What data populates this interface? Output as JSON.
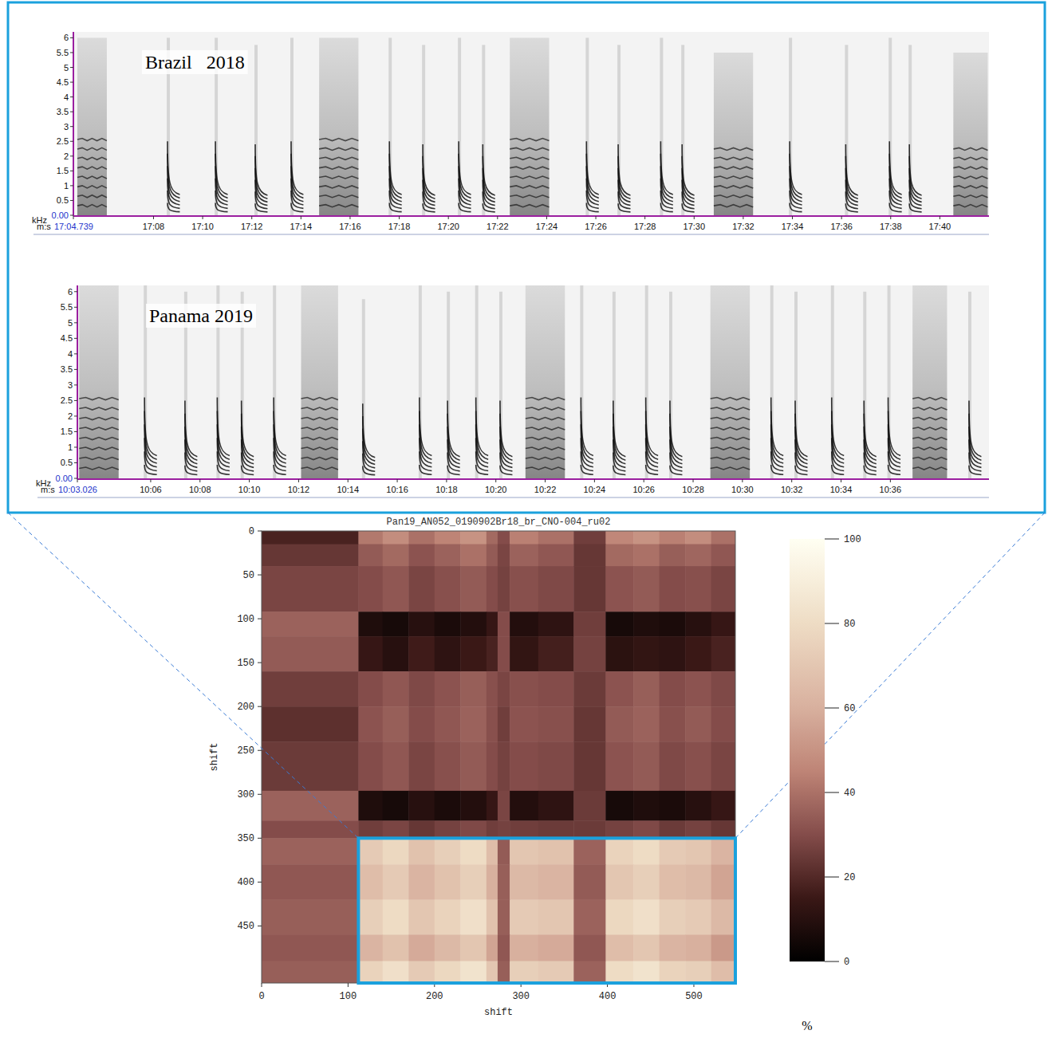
{
  "chart_data": [
    {
      "type": "spectrogram",
      "title": "Brazil   2018",
      "x_label": "m:s",
      "y_label": "kHz",
      "xlim": [
        1024.739,
        1062.0
      ],
      "ylim": [
        0,
        6.2
      ],
      "xticks": [
        {
          "value": 1024.739,
          "label": "17:04.739"
        },
        {
          "value": 1028,
          "label": "17:08"
        },
        {
          "value": 1030,
          "label": "17:10"
        },
        {
          "value": 1032,
          "label": "17:12"
        },
        {
          "value": 1034,
          "label": "17:14"
        },
        {
          "value": 1036,
          "label": "17:16"
        },
        {
          "value": 1038,
          "label": "17:18"
        },
        {
          "value": 1040,
          "label": "17:20"
        },
        {
          "value": 1042,
          "label": "17:22"
        },
        {
          "value": 1044,
          "label": "17:24"
        },
        {
          "value": 1046,
          "label": "17:26"
        },
        {
          "value": 1048,
          "label": "17:28"
        },
        {
          "value": 1050,
          "label": "17:30"
        },
        {
          "value": 1052,
          "label": "17:32"
        },
        {
          "value": 1054,
          "label": "17:34"
        },
        {
          "value": 1056,
          "label": "17:36"
        },
        {
          "value": 1058,
          "label": "17:38"
        },
        {
          "value": 1060,
          "label": "17:40"
        }
      ],
      "yticks": [
        {
          "value": 0,
          "label": "0.00"
        },
        0.5,
        1,
        1.5,
        2,
        2.5,
        3,
        3.5,
        4,
        4.5,
        5,
        5.5,
        6
      ],
      "calls": [
        {
          "type": "burst",
          "t": 1024.9,
          "dur": 1.2,
          "fmax": 6
        },
        {
          "type": "sweep",
          "t": 1028.57,
          "dur": 0.5,
          "fmax": 2.5
        },
        {
          "type": "sweep",
          "t": 1030.52,
          "dur": 0.5,
          "fmax": 2.5
        },
        {
          "type": "sweep",
          "t": 1032.14,
          "dur": 0.5,
          "fmax": 2.4
        },
        {
          "type": "sweep",
          "t": 1033.6,
          "dur": 0.5,
          "fmax": 2.5
        },
        {
          "type": "burst",
          "t": 1034.74,
          "dur": 1.6,
          "fmax": 6
        },
        {
          "type": "sweep",
          "t": 1037.6,
          "dur": 0.5,
          "fmax": 2.5
        },
        {
          "type": "sweep",
          "t": 1038.96,
          "dur": 0.5,
          "fmax": 2.4
        },
        {
          "type": "sweep",
          "t": 1040.42,
          "dur": 0.5,
          "fmax": 2.5
        },
        {
          "type": "sweep",
          "t": 1041.4,
          "dur": 0.5,
          "fmax": 2.4
        },
        {
          "type": "burst",
          "t": 1042.5,
          "dur": 1.6,
          "fmax": 6
        },
        {
          "type": "sweep",
          "t": 1045.62,
          "dur": 0.5,
          "fmax": 2.5
        },
        {
          "type": "sweep",
          "t": 1046.91,
          "dur": 0.5,
          "fmax": 2.4
        },
        {
          "type": "sweep",
          "t": 1048.64,
          "dur": 0.5,
          "fmax": 2.5
        },
        {
          "type": "sweep",
          "t": 1049.51,
          "dur": 0.5,
          "fmax": 2.4
        },
        {
          "type": "burst",
          "t": 1050.8,
          "dur": 1.6,
          "fmax": 5.5
        },
        {
          "type": "sweep",
          "t": 1053.89,
          "dur": 0.5,
          "fmax": 2.5
        },
        {
          "type": "sweep",
          "t": 1056.17,
          "dur": 0.5,
          "fmax": 2.4
        },
        {
          "type": "sweep",
          "t": 1057.95,
          "dur": 0.5,
          "fmax": 2.5
        },
        {
          "type": "sweep",
          "t": 1058.76,
          "dur": 0.5,
          "fmax": 2.4
        },
        {
          "type": "burst",
          "t": 1060.55,
          "dur": 1.4,
          "fmax": 5.5
        }
      ]
    },
    {
      "type": "spectrogram",
      "title": "Panama 2019",
      "x_label": "m:s",
      "y_label": "kHz",
      "xlim": [
        603.026,
        640.0
      ],
      "ylim": [
        0,
        6.2
      ],
      "xticks": [
        {
          "value": 603.026,
          "label": "10:03.026"
        },
        {
          "value": 606,
          "label": "10:06"
        },
        {
          "value": 608,
          "label": "10:08"
        },
        {
          "value": 610,
          "label": "10:10"
        },
        {
          "value": 612,
          "label": "10:12"
        },
        {
          "value": 614,
          "label": "10:14"
        },
        {
          "value": 616,
          "label": "10:16"
        },
        {
          "value": 618,
          "label": "10:18"
        },
        {
          "value": 620,
          "label": "10:20"
        },
        {
          "value": 622,
          "label": "10:22"
        },
        {
          "value": 624,
          "label": "10:24"
        },
        {
          "value": 626,
          "label": "10:26"
        },
        {
          "value": 628,
          "label": "10:28"
        },
        {
          "value": 630,
          "label": "10:30"
        },
        {
          "value": 632,
          "label": "10:32"
        },
        {
          "value": 634,
          "label": "10:34"
        },
        {
          "value": 636,
          "label": "10:36"
        }
      ],
      "yticks": [
        {
          "value": 0,
          "label": "0.00"
        },
        0.5,
        1,
        1.5,
        2,
        2.5,
        3,
        3.5,
        4,
        4.5,
        5,
        5.5,
        6
      ],
      "calls": [
        {
          "type": "burst",
          "t": 603.1,
          "dur": 1.6,
          "fmax": 6.2
        },
        {
          "type": "sweep",
          "t": 605.75,
          "dur": 0.5,
          "fmax": 2.6
        },
        {
          "type": "sweep",
          "t": 607.39,
          "dur": 0.5,
          "fmax": 2.5
        },
        {
          "type": "sweep",
          "t": 608.7,
          "dur": 0.5,
          "fmax": 2.6
        },
        {
          "type": "sweep",
          "t": 609.68,
          "dur": 0.5,
          "fmax": 2.5
        },
        {
          "type": "sweep",
          "t": 610.99,
          "dur": 0.5,
          "fmax": 2.6
        },
        {
          "type": "burst",
          "t": 612.1,
          "dur": 1.5,
          "fmax": 6.2
        },
        {
          "type": "sweep",
          "t": 614.6,
          "dur": 0.5,
          "fmax": 2.4
        },
        {
          "type": "sweep",
          "t": 616.9,
          "dur": 0.5,
          "fmax": 2.6
        },
        {
          "type": "sweep",
          "t": 618.04,
          "dur": 0.5,
          "fmax": 2.5
        },
        {
          "type": "sweep",
          "t": 619.19,
          "dur": 0.5,
          "fmax": 2.6
        },
        {
          "type": "sweep",
          "t": 620.17,
          "dur": 0.5,
          "fmax": 2.5
        },
        {
          "type": "burst",
          "t": 621.2,
          "dur": 1.6,
          "fmax": 6.2
        },
        {
          "type": "sweep",
          "t": 623.45,
          "dur": 0.5,
          "fmax": 2.6
        },
        {
          "type": "sweep",
          "t": 624.76,
          "dur": 0.5,
          "fmax": 2.5
        },
        {
          "type": "sweep",
          "t": 626.08,
          "dur": 0.5,
          "fmax": 2.6
        },
        {
          "type": "sweep",
          "t": 627.06,
          "dur": 0.5,
          "fmax": 2.5
        },
        {
          "type": "burst",
          "t": 628.7,
          "dur": 1.6,
          "fmax": 6.2
        },
        {
          "type": "sweep",
          "t": 631.16,
          "dur": 0.5,
          "fmax": 2.6
        },
        {
          "type": "sweep",
          "t": 632.14,
          "dur": 0.5,
          "fmax": 2.5
        },
        {
          "type": "sweep",
          "t": 633.62,
          "dur": 0.5,
          "fmax": 2.6
        },
        {
          "type": "sweep",
          "t": 634.93,
          "dur": 0.5,
          "fmax": 2.5
        },
        {
          "type": "sweep",
          "t": 635.91,
          "dur": 0.5,
          "fmax": 2.6
        },
        {
          "type": "burst",
          "t": 636.9,
          "dur": 1.4,
          "fmax": 6.2
        },
        {
          "type": "sweep",
          "t": 639.19,
          "dur": 0.5,
          "fmax": 2.5
        }
      ]
    },
    {
      "type": "heatmap",
      "title": "Pan19_AN052_0190902Br18_br_CNO-004_ru02",
      "x_label": "shift",
      "y_label": "shift",
      "xlim": [
        0,
        548
      ],
      "ylim": [
        0,
        515
      ],
      "xticks": [
        0,
        100,
        200,
        300,
        400,
        500
      ],
      "yticks": [
        0,
        50,
        100,
        150,
        200,
        250,
        300,
        350,
        400,
        450
      ],
      "x_edges": [
        0,
        112,
        140,
        170,
        200,
        230,
        260,
        273,
        287,
        320,
        361,
        398,
        430,
        460,
        490,
        520,
        548
      ],
      "y_edges": [
        0,
        15,
        40,
        92,
        120,
        160,
        200,
        240,
        296,
        330,
        350,
        380,
        420,
        460,
        490,
        515
      ],
      "cells": [
        [
          18,
          42,
          48,
          40,
          45,
          50,
          38,
          30,
          44,
          40,
          26,
          46,
          50,
          44,
          48,
          40
        ],
        [
          24,
          34,
          38,
          32,
          36,
          40,
          34,
          28,
          36,
          33,
          24,
          38,
          40,
          35,
          37,
          33
        ],
        [
          28,
          30,
          33,
          28,
          31,
          34,
          30,
          27,
          31,
          29,
          24,
          32,
          34,
          30,
          31,
          28
        ],
        [
          36,
          8,
          6,
          10,
          7,
          9,
          14,
          30,
          9,
          12,
          26,
          6,
          8,
          7,
          10,
          14
        ],
        [
          34,
          14,
          10,
          16,
          12,
          15,
          18,
          30,
          13,
          17,
          27,
          11,
          13,
          12,
          15,
          18
        ],
        [
          26,
          30,
          33,
          29,
          32,
          35,
          31,
          28,
          31,
          30,
          25,
          32,
          35,
          30,
          32,
          29
        ],
        [
          22,
          32,
          35,
          30,
          33,
          36,
          31,
          26,
          32,
          31,
          24,
          34,
          36,
          31,
          34,
          30
        ],
        [
          25,
          30,
          33,
          28,
          31,
          34,
          30,
          27,
          30,
          29,
          24,
          32,
          34,
          29,
          31,
          28
        ],
        [
          36,
          8,
          6,
          10,
          7,
          9,
          14,
          28,
          9,
          12,
          25,
          6,
          8,
          7,
          10,
          14
        ],
        [
          30,
          26,
          28,
          24,
          27,
          29,
          26,
          27,
          26,
          25,
          25,
          27,
          29,
          25,
          27,
          24
        ],
        [
          36,
          72,
          78,
          68,
          74,
          80,
          66,
          34,
          70,
          68,
          36,
          76,
          80,
          72,
          70,
          62
        ],
        [
          33,
          66,
          72,
          62,
          68,
          74,
          60,
          35,
          64,
          62,
          34,
          70,
          74,
          66,
          64,
          56
        ],
        [
          35,
          74,
          80,
          70,
          76,
          82,
          68,
          35,
          72,
          70,
          36,
          78,
          82,
          74,
          72,
          64
        ],
        [
          33,
          62,
          68,
          58,
          64,
          70,
          56,
          33,
          60,
          58,
          33,
          66,
          70,
          62,
          60,
          52
        ],
        [
          35,
          76,
          82,
          72,
          78,
          84,
          70,
          35,
          74,
          72,
          36,
          80,
          84,
          76,
          74,
          66
        ]
      ],
      "colorbar": {
        "range": [
          0,
          100
        ],
        "ticks": [
          0,
          20,
          40,
          60,
          80,
          100
        ],
        "label": "%"
      },
      "highlight": {
        "x": [
          112,
          548
        ],
        "y": [
          350,
          515
        ]
      }
    }
  ]
}
